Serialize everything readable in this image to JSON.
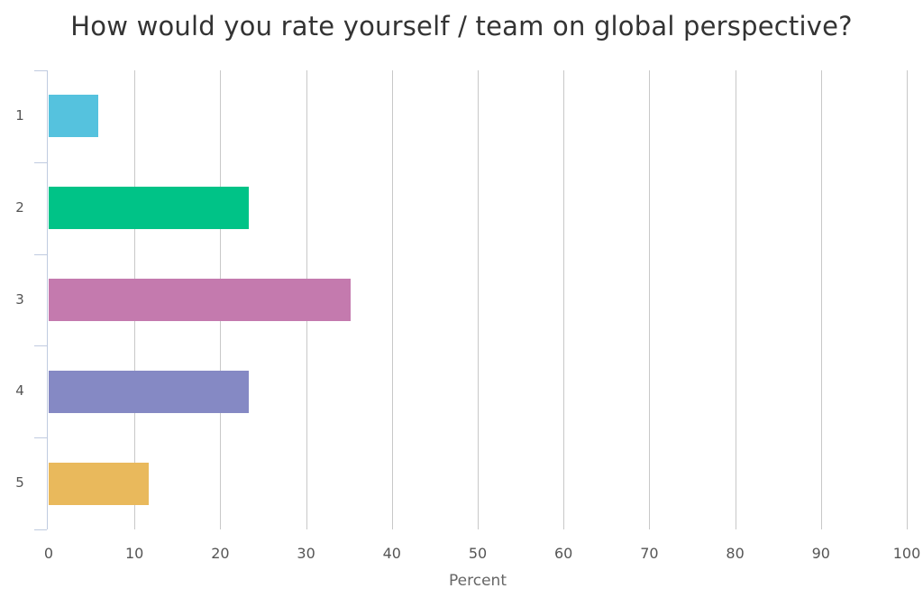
{
  "chart_data": {
    "type": "bar",
    "orientation": "horizontal",
    "title": "How would you rate yourself / team on global perspective?",
    "xlabel": "Percent",
    "ylabel": "",
    "categories": [
      "1",
      "2",
      "3",
      "4",
      "5"
    ],
    "values": [
      5.8,
      23.3,
      35.2,
      23.3,
      11.7
    ],
    "colors": [
      "#55c2de",
      "#00c387",
      "#c47aae",
      "#8589c4",
      "#e9b95c"
    ],
    "xlim": [
      0,
      100
    ],
    "xticks": [
      "0",
      "10",
      "20",
      "30",
      "40",
      "50",
      "60",
      "70",
      "80",
      "90",
      "100"
    ],
    "grid": true,
    "legend": null
  }
}
